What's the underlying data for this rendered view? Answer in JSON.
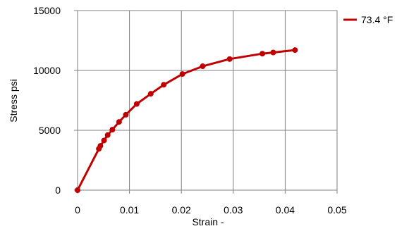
{
  "chart_data": {
    "type": "line",
    "xlabel": "Strain  -",
    "ylabel": "Stress  psi",
    "xlim": [
      0,
      0.05
    ],
    "ylim": [
      0,
      15000
    ],
    "x_ticks": [
      0,
      0.01,
      0.02,
      0.03,
      0.04,
      0.05
    ],
    "x_tick_labels": [
      "0",
      "0.01",
      "0.02",
      "0.03",
      "0.04",
      "0.05"
    ],
    "y_ticks": [
      0,
      5000,
      10000,
      15000
    ],
    "y_tick_labels": [
      "0",
      "5000",
      "10000",
      "15000"
    ],
    "grid": true,
    "legend_position": "top-right",
    "series": [
      {
        "name": "73.4 °F",
        "color": "#c00000",
        "points": [
          {
            "x": 0,
            "y": 0
          },
          {
            "x": 0.0041,
            "y": 3450
          },
          {
            "x": 0.0044,
            "y": 3700
          },
          {
            "x": 0.0051,
            "y": 4150
          },
          {
            "x": 0.0058,
            "y": 4600
          },
          {
            "x": 0.0067,
            "y": 5050
          },
          {
            "x": 0.008,
            "y": 5700
          },
          {
            "x": 0.0093,
            "y": 6300
          },
          {
            "x": 0.0114,
            "y": 7200
          },
          {
            "x": 0.0141,
            "y": 8050
          },
          {
            "x": 0.0166,
            "y": 8800
          },
          {
            "x": 0.0202,
            "y": 9700
          },
          {
            "x": 0.0241,
            "y": 10350
          },
          {
            "x": 0.0293,
            "y": 10950
          },
          {
            "x": 0.0356,
            "y": 11400
          },
          {
            "x": 0.0377,
            "y": 11500
          },
          {
            "x": 0.0419,
            "y": 11700
          }
        ]
      }
    ]
  }
}
